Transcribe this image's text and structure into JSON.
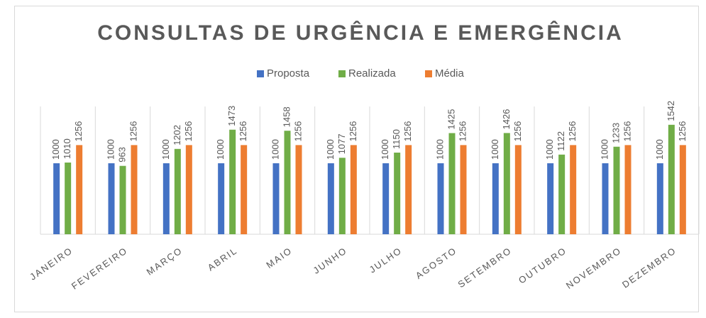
{
  "chart_data": {
    "type": "bar",
    "title": "CONSULTAS DE URGÊNCIA E EMERGÊNCIA",
    "categories": [
      "JANEIRO",
      "FEVEREIRO",
      "MARÇO",
      "ABRIL",
      "MAIO",
      "JUNHO",
      "JULHO",
      "AGOSTO",
      "SETEMBRO",
      "OUTUBRO",
      "NOVEMBRO",
      "DEZEMBRO"
    ],
    "series": [
      {
        "name": "Proposta",
        "color": "#4472c4",
        "values": [
          1000,
          1000,
          1000,
          1000,
          1000,
          1000,
          1000,
          1000,
          1000,
          1000,
          1000,
          1000
        ]
      },
      {
        "name": "Realizada",
        "color": "#70ad47",
        "values": [
          1010,
          963,
          1202,
          1473,
          1458,
          1077,
          1150,
          1425,
          1426,
          1122,
          1233,
          1542
        ]
      },
      {
        "name": "Média",
        "color": "#ed7d31",
        "values": [
          1256,
          1256,
          1256,
          1256,
          1256,
          1256,
          1256,
          1256,
          1256,
          1256,
          1256,
          1256
        ]
      }
    ],
    "ylim": [
      0,
      1800
    ],
    "legend": "top"
  }
}
